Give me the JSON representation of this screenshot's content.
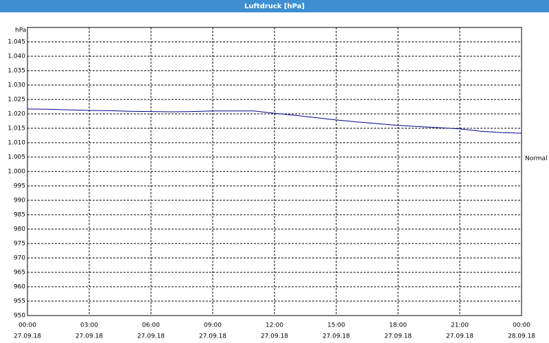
{
  "window_title": "Luftdruck [hPa]",
  "chart_data": {
    "type": "line",
    "y_unit": "hPa",
    "x": [
      0,
      1,
      2,
      3,
      4,
      5,
      6,
      7,
      8,
      9,
      10,
      11,
      12,
      13,
      14,
      15,
      16,
      17,
      18,
      19,
      20,
      21,
      22,
      23,
      24
    ],
    "series": [
      {
        "name": "Luftdruck",
        "color": "#00008b",
        "values": [
          1021.7,
          1021.6,
          1021.4,
          1021.2,
          1021.1,
          1020.9,
          1020.8,
          1020.7,
          1020.8,
          1021.0,
          1021.0,
          1021.0,
          1020.2,
          1019.5,
          1018.7,
          1017.9,
          1017.2,
          1016.6,
          1016.0,
          1015.6,
          1015.2,
          1014.8,
          1014.0,
          1013.5,
          1013.3
        ]
      }
    ],
    "xlim": [
      0,
      24
    ],
    "xticks": [
      {
        "value": 0,
        "label": "00:00"
      },
      {
        "value": 3,
        "label": "03:00"
      },
      {
        "value": 6,
        "label": "06:00"
      },
      {
        "value": 9,
        "label": "09:00"
      },
      {
        "value": 12,
        "label": "12:00"
      },
      {
        "value": 15,
        "label": "15:00"
      },
      {
        "value": 18,
        "label": "18:00"
      },
      {
        "value": 21,
        "label": "21:00"
      },
      {
        "value": 24,
        "label": "00:00"
      }
    ],
    "xtick_dates": [
      "27.09.18",
      "27.09.18",
      "27.09.18",
      "27.09.18",
      "27.09.18",
      "27.09.18",
      "27.09.18",
      "27.09.18",
      "28.09.18"
    ],
    "ylim": [
      950,
      1050
    ],
    "yticks": [
      950,
      955,
      960,
      965,
      970,
      975,
      980,
      985,
      990,
      995,
      {
        "value": 1000,
        "label": "1.000"
      },
      {
        "value": 1005,
        "label": "1.005"
      },
      {
        "value": 1010,
        "label": "1.010"
      },
      {
        "value": 1015,
        "label": "1.015"
      },
      {
        "value": 1020,
        "label": "1.020"
      },
      {
        "value": 1025,
        "label": "1.025"
      },
      {
        "value": 1030,
        "label": "1.030"
      },
      {
        "value": 1035,
        "label": "1.035"
      },
      {
        "value": 1040,
        "label": "1.040"
      },
      {
        "value": 1045,
        "label": "1.045"
      }
    ],
    "grid": true,
    "annotation": {
      "text": "Normal",
      "value": 1004.5
    }
  }
}
